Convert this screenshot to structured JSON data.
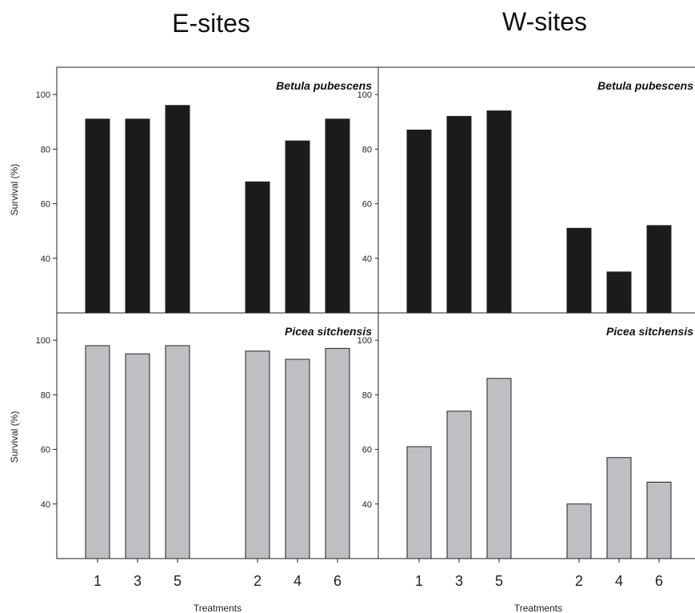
{
  "chart_data": {
    "type": "bar",
    "columns": [
      "E-sites",
      "W-sites"
    ],
    "ylabel": "Survival (%)",
    "xlabel": "Treatments",
    "ylim": [
      20,
      110
    ],
    "yticks": [
      40,
      60,
      80,
      100
    ],
    "categories": [
      "1",
      "3",
      "5",
      "2",
      "4",
      "6"
    ],
    "grid": false,
    "panels": [
      {
        "row": 0,
        "col": 0,
        "column_title": "E-sites",
        "species": "Betula pubescens",
        "bar_color": "#1c1a1a",
        "values": [
          91,
          91,
          96,
          68,
          83,
          91
        ]
      },
      {
        "row": 0,
        "col": 1,
        "column_title": "W-sites",
        "species": "Betula pubescens",
        "bar_color": "#1c1a1a",
        "values": [
          87,
          92,
          94,
          51,
          35,
          52
        ]
      },
      {
        "row": 1,
        "col": 0,
        "column_title": "E-sites",
        "species": "Picea sitchensis",
        "bar_color": "#bebfc2",
        "values": [
          98,
          95,
          98,
          96,
          93,
          97
        ]
      },
      {
        "row": 1,
        "col": 1,
        "column_title": "W-sites",
        "species": "Picea sitchensis",
        "bar_color": "#bebfc2",
        "values": [
          61,
          74,
          86,
          40,
          57,
          48
        ]
      }
    ]
  }
}
